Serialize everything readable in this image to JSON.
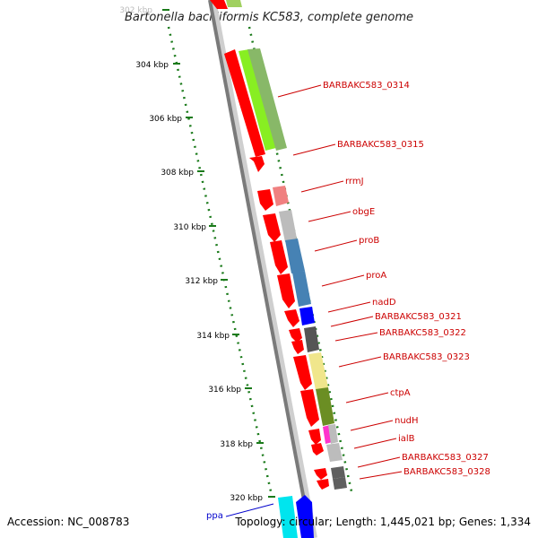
{
  "title": "Bartonella bacilliformis KC583, complete genome",
  "accession": "Accession: NC_008783",
  "topology": "Topology: circular; Length: 1,445,021 bp; Genes: 1,334",
  "ticks": [
    "302 kbp",
    "304 kbp",
    "306 kbp",
    "308 kbp",
    "310 kbp",
    "312 kbp",
    "314 kbp",
    "316 kbp",
    "318 kbp",
    "320 kbp"
  ],
  "genes": [
    {
      "label": "BARBAKC583_0314",
      "color": "#cc0000"
    },
    {
      "label": "BARBAKC583_0315",
      "color": "#cc0000"
    },
    {
      "label": "rrmJ",
      "color": "#cc0000"
    },
    {
      "label": "obgE",
      "color": "#cc0000"
    },
    {
      "label": "proB",
      "color": "#cc0000"
    },
    {
      "label": "proA",
      "color": "#cc0000"
    },
    {
      "label": "nadD",
      "color": "#cc0000"
    },
    {
      "label": "BARBAKC583_0321",
      "color": "#cc0000"
    },
    {
      "label": "BARBAKC583_0322",
      "color": "#cc0000"
    },
    {
      "label": "BARBAKC583_0323",
      "color": "#cc0000"
    },
    {
      "label": "ctpA",
      "color": "#cc0000"
    },
    {
      "label": "nudH",
      "color": "#cc0000"
    },
    {
      "label": "ialB",
      "color": "#cc0000"
    },
    {
      "label": "BARBAKC583_0327",
      "color": "#cc0000"
    },
    {
      "label": "BARBAKC583_0328",
      "color": "#cc0000"
    },
    {
      "label": "ppa",
      "color": "#0000cc"
    }
  ]
}
